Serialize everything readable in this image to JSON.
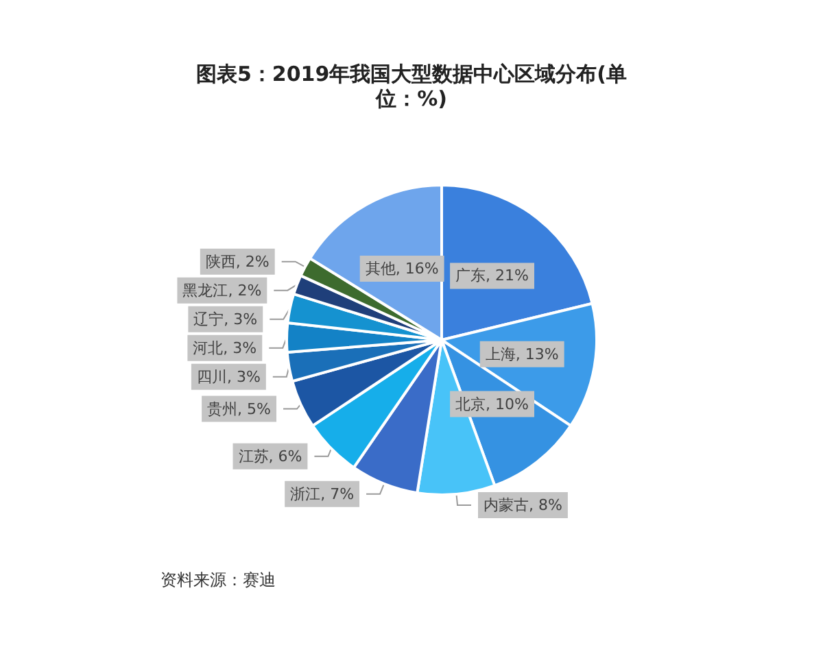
{
  "chart_data": {
    "type": "pie",
    "title": "图表5：2019年我国大型数据中心区域分布(单位：%)",
    "categories": [
      "广东",
      "上海",
      "北京",
      "内蒙古",
      "浙江",
      "江苏",
      "贵州",
      "四川",
      "河北",
      "辽宁",
      "黑龙江",
      "陕西",
      "其他"
    ],
    "values": [
      21,
      13,
      10,
      8,
      7,
      6,
      5,
      3,
      3,
      3,
      2,
      2,
      16
    ],
    "value_labels": [
      "21%",
      "13%",
      "10%",
      "8%",
      "7%",
      "6%",
      "5%",
      "3%",
      "3%",
      "3%",
      "2%",
      "2%",
      "16%"
    ],
    "colors": [
      "#3a80dd",
      "#3c9be9",
      "#3592e2",
      "#48c3f8",
      "#3a6cc8",
      "#16aeea",
      "#1c56a4",
      "#1a6fb8",
      "#1382c6",
      "#1592d0",
      "#1f3f7a",
      "#3d6b2e",
      "#6ea5ec"
    ],
    "annotations": [
      "资料来源：赛迪"
    ]
  }
}
